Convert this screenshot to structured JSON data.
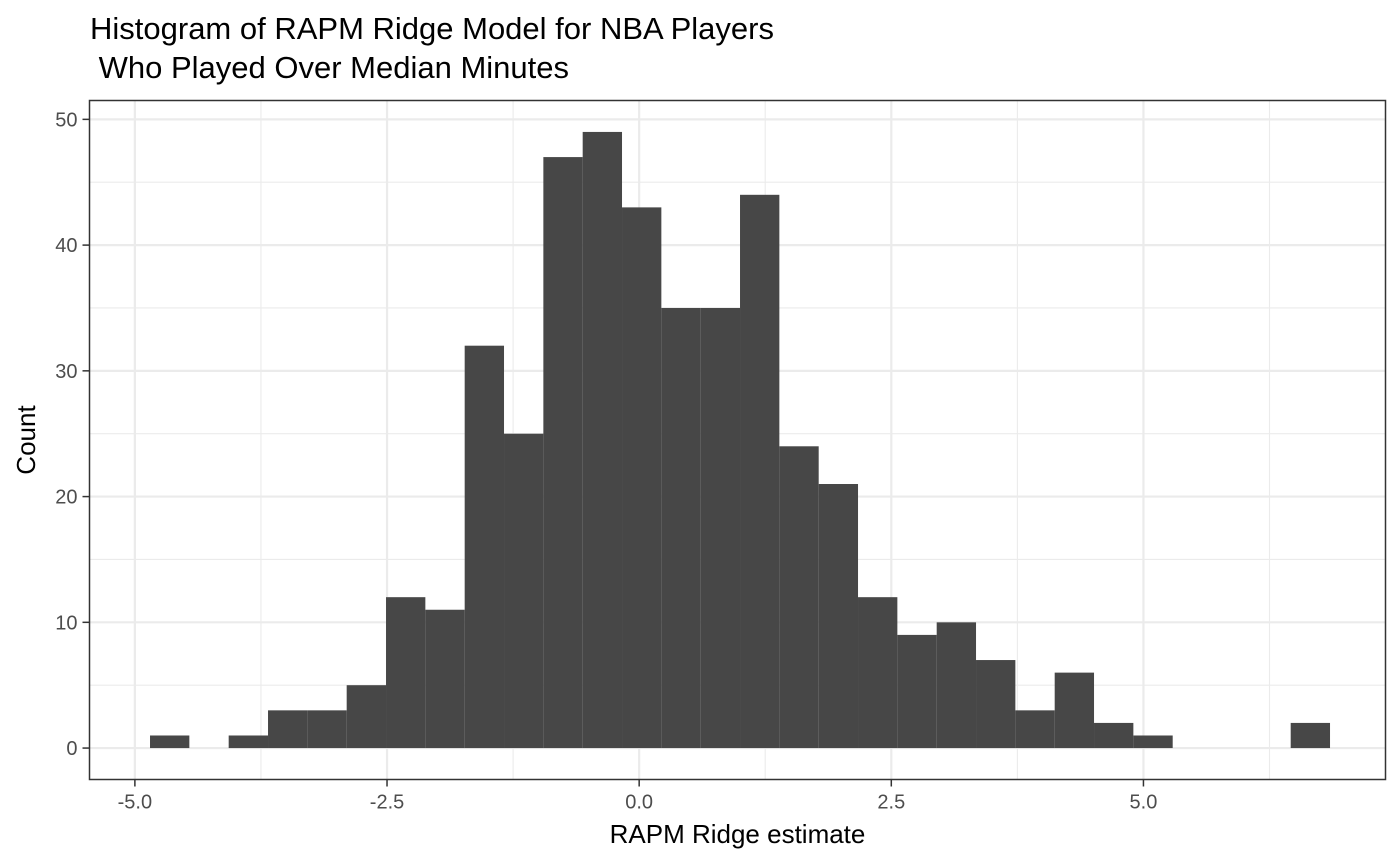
{
  "chart_data": {
    "type": "bar",
    "subtype": "histogram",
    "title_lines": [
      "Histogram of RAPM Ridge Model for NBA Players",
      " Who Played Over Median Minutes"
    ],
    "xlabel": "RAPM Ridge estimate",
    "ylabel": "Count",
    "bin_width": 0.39,
    "bin_start": -4.85,
    "counts": [
      1,
      0,
      1,
      3,
      3,
      5,
      12,
      11,
      32,
      25,
      47,
      49,
      43,
      35,
      35,
      44,
      24,
      21,
      12,
      9,
      10,
      7,
      3,
      6,
      2,
      1,
      0,
      0,
      0,
      2
    ],
    "xlim": [
      -5.45,
      7.4
    ],
    "ylim": [
      -2.5,
      51.5
    ],
    "x_ticks": [
      -5.0,
      -2.5,
      0.0,
      2.5,
      5.0
    ],
    "x_tick_labels": [
      "-5.0",
      "-2.5",
      "0.0",
      "2.5",
      "5.0"
    ],
    "y_ticks": [
      0,
      10,
      20,
      30,
      40,
      50
    ],
    "y_tick_labels": [
      "0",
      "10",
      "20",
      "30",
      "40",
      "50"
    ],
    "bar_color": "#474747",
    "grid": true,
    "legend": "none"
  }
}
